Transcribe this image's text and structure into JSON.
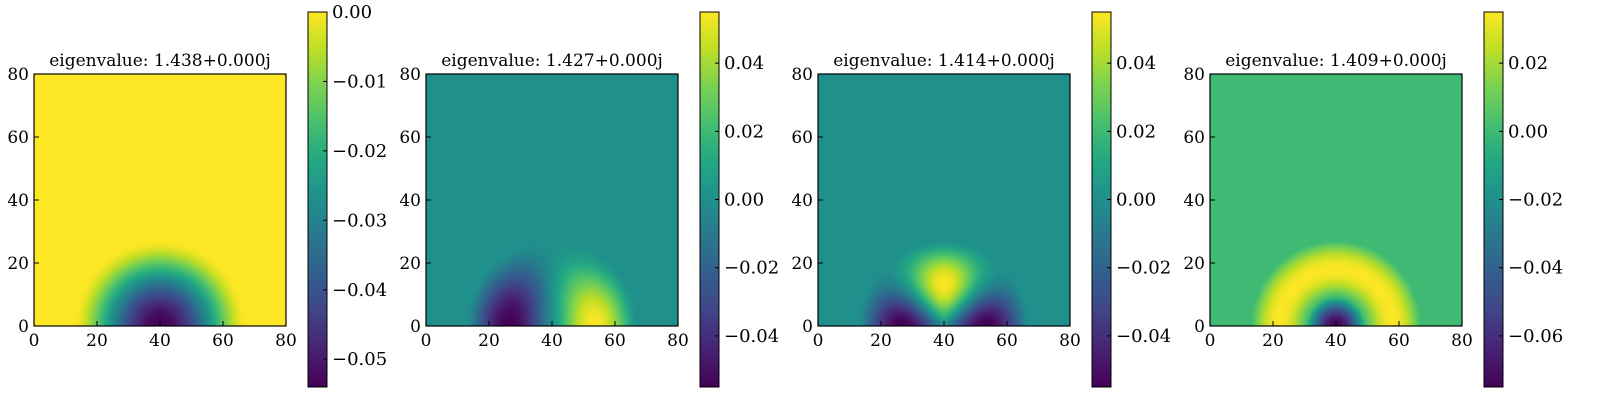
{
  "chart_data": [
    {
      "type": "heatmap",
      "title": "eigenvalue: 1.438+0.000j",
      "x_ticks": [
        0,
        20,
        40,
        60,
        80
      ],
      "y_ticks": [
        0,
        20,
        40,
        60,
        80
      ],
      "xlim": [
        0,
        80
      ],
      "ylim": [
        0,
        80
      ],
      "colormap": "viridis",
      "colorbar_range": [
        -0.054,
        0.0
      ],
      "colorbar_ticks": [
        0.0,
        -0.01,
        -0.02,
        -0.03,
        -0.04,
        -0.05
      ],
      "colorbar_tick_labels": [
        "0.00",
        "−0.01",
        "−0.02",
        "−0.03",
        "−0.04",
        "−0.05"
      ],
      "mode": {
        "kind": "semi_disk",
        "center": [
          40,
          0
        ],
        "radius": 27,
        "sign": -1
      }
    },
    {
      "type": "heatmap",
      "title": "eigenvalue: 1.427+0.000j",
      "x_ticks": [
        0,
        20,
        40,
        60,
        80
      ],
      "y_ticks": [
        0,
        20,
        40,
        60,
        80
      ],
      "xlim": [
        0,
        80
      ],
      "ylim": [
        0,
        80
      ],
      "colormap": "viridis",
      "colorbar_range": [
        -0.055,
        0.055
      ],
      "colorbar_ticks": [
        0.04,
        0.02,
        0.0,
        -0.02,
        -0.04
      ],
      "colorbar_tick_labels": [
        "0.04",
        "0.02",
        "0.00",
        "−0.02",
        "−0.04"
      ],
      "mode": {
        "kind": "dipole",
        "center": [
          40,
          0
        ],
        "radius": 27
      }
    },
    {
      "type": "heatmap",
      "title": "eigenvalue: 1.414+0.000j",
      "x_ticks": [
        0,
        20,
        40,
        60,
        80
      ],
      "y_ticks": [
        0,
        20,
        40,
        60,
        80
      ],
      "xlim": [
        0,
        80
      ],
      "ylim": [
        0,
        80
      ],
      "colormap": "viridis",
      "colorbar_range": [
        -0.055,
        0.055
      ],
      "colorbar_ticks": [
        0.04,
        0.02,
        0.0,
        -0.02,
        -0.04
      ],
      "colorbar_tick_labels": [
        "0.04",
        "0.02",
        "0.00",
        "−0.02",
        "−0.04"
      ],
      "mode": {
        "kind": "tripole",
        "center": [
          40,
          0
        ],
        "radius": 27
      }
    },
    {
      "type": "heatmap",
      "title": "eigenvalue: 1.409+0.000j",
      "x_ticks": [
        0,
        20,
        40,
        60,
        80
      ],
      "y_ticks": [
        0,
        20,
        40,
        60,
        80
      ],
      "xlim": [
        0,
        80
      ],
      "ylim": [
        0,
        80
      ],
      "colormap": "viridis",
      "colorbar_range": [
        -0.075,
        0.035
      ],
      "colorbar_ticks": [
        0.02,
        0.0,
        -0.02,
        -0.04,
        -0.06
      ],
      "colorbar_tick_labels": [
        "0.02",
        "0.00",
        "−0.02",
        "−0.04",
        "−0.06"
      ],
      "mode": {
        "kind": "ring",
        "center": [
          40,
          0
        ],
        "radius": 27
      }
    }
  ]
}
